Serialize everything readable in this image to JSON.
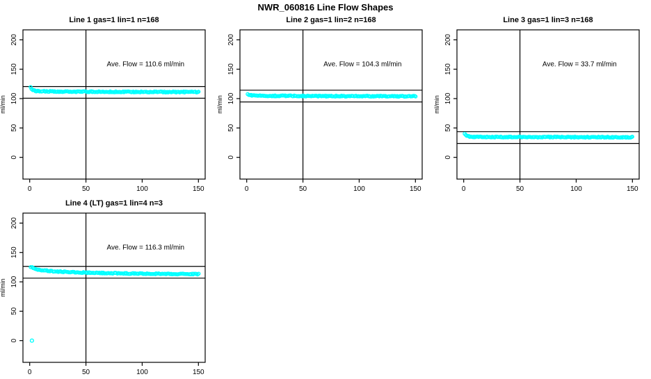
{
  "page_title": "NWR_060816  Line Flow Shapes",
  "colors": {
    "marker": "#00FFFF",
    "axis": "#000000",
    "background": "#FFFFFF",
    "text": "#000000"
  },
  "chart_data": {
    "type": "scatter",
    "title": "NWR_060816  Line Flow Shapes",
    "layout_hint": "2 rows x 3 columns of panels; positions 1-4 used, last two empty; no grid; open cyan circle markers; black box axes",
    "shared": {
      "xlim": [
        -6,
        156
      ],
      "ylim": [
        -37,
        217
      ],
      "xticks": [
        0,
        50,
        100,
        150
      ],
      "yticks": [
        0,
        50,
        100,
        150,
        200
      ],
      "xlabel": "",
      "ylabel": "ml/min",
      "grid": false,
      "vline_x": 50,
      "hlines_rule": "average flow plus and minus 10 ml/min"
    },
    "panels": [
      {
        "title": "Line 1 gas=1 lin=1 n=168",
        "annotation": "Ave. Flow =  110.6  ml/min",
        "ave_flow_ml_min": 110.6,
        "n": 168,
        "hlines": [
          120.6,
          100.6
        ],
        "vlines": [
          50
        ],
        "x_range": [
          1,
          150
        ],
        "marker_count": 168,
        "profile": [
          [
            1,
            120
          ],
          [
            2,
            116.5
          ],
          [
            3,
            114.5
          ],
          [
            5,
            113.2
          ],
          [
            9,
            112.4
          ],
          [
            20,
            112.0
          ],
          [
            60,
            111.6
          ],
          [
            100,
            111.4
          ],
          [
            150,
            111.1
          ]
        ],
        "extra_points": []
      },
      {
        "title": "Line 2 gas=1 lin=2 n=168",
        "annotation": "Ave. Flow =  104.3  ml/min",
        "ave_flow_ml_min": 104.3,
        "n": 168,
        "hlines": [
          114.3,
          94.3
        ],
        "vlines": [
          50
        ],
        "x_range": [
          1,
          150
        ],
        "marker_count": 168,
        "profile": [
          [
            1,
            108
          ],
          [
            2,
            106.5
          ],
          [
            4,
            105.6
          ],
          [
            8,
            105.1
          ],
          [
            20,
            104.7
          ],
          [
            60,
            104.3
          ],
          [
            150,
            103.9
          ]
        ],
        "extra_points": []
      },
      {
        "title": "Line 3 gas=1 lin=3 n=168",
        "annotation": "Ave. Flow =  33.7  ml/min",
        "ave_flow_ml_min": 33.7,
        "n": 168,
        "hlines": [
          43.7,
          23.7
        ],
        "vlines": [
          50
        ],
        "x_range": [
          1,
          150
        ],
        "marker_count": 168,
        "profile": [
          [
            1,
            40
          ],
          [
            2,
            37.2
          ],
          [
            3,
            36.2
          ],
          [
            5,
            35.4
          ],
          [
            10,
            34.9
          ],
          [
            30,
            34.6
          ],
          [
            150,
            34.3
          ]
        ],
        "extra_points": []
      },
      {
        "title": "Line 4 (LT) gas=1 lin=4 n=3",
        "annotation": "Ave. Flow =  116.3  ml/min",
        "ave_flow_ml_min": 116.3,
        "n": 3,
        "hlines": [
          126.3,
          106.3
        ],
        "vlines": [
          50
        ],
        "x_range": [
          1,
          150
        ],
        "marker_count": 160,
        "profile": [
          [
            1,
            125
          ],
          [
            3,
            123.5
          ],
          [
            6,
            121.5
          ],
          [
            12,
            119.5
          ],
          [
            25,
            117.5
          ],
          [
            45,
            116.0
          ],
          [
            75,
            114.6
          ],
          [
            110,
            113.8
          ],
          [
            150,
            113.2
          ]
        ],
        "extra_points": [
          [
            2,
            0
          ]
        ]
      }
    ]
  }
}
